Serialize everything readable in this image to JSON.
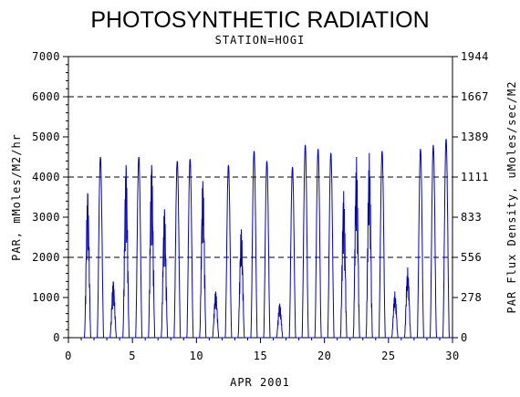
{
  "chart_data": {
    "type": "line",
    "title": "PHOTOSYNTHETIC RADIATION",
    "subtitle": "STATION=HOGI",
    "xlabel": "APR 2001",
    "ylabel": "PAR, mMoles/M2/hr",
    "y2label": "PAR Flux Density, uMoles/sec/M2",
    "xlim": [
      0,
      30
    ],
    "ylim": [
      0,
      7000
    ],
    "xticks": [
      0,
      5,
      10,
      15,
      20,
      25,
      30
    ],
    "xtick_labels": [
      "0",
      "5",
      "10",
      "15",
      "20",
      "25",
      "30"
    ],
    "yticks": [
      0,
      1000,
      2000,
      3000,
      4000,
      5000,
      6000,
      7000
    ],
    "ytick_labels": [
      "0",
      "1000",
      "2000",
      "3000",
      "4000",
      "5000",
      "6000",
      "7000"
    ],
    "y2ticks": [
      0,
      278,
      556,
      833,
      1111,
      1389,
      1667,
      1944
    ],
    "y2tick_labels": [
      "0",
      "278",
      "556",
      "833",
      "1111",
      "1389",
      "1667",
      "1944"
    ],
    "hlines": [
      2000,
      4000,
      6000
    ],
    "grid": false,
    "color": "#0000cc",
    "series": [
      {
        "daily": [
          {
            "day": 1,
            "peak": 3600,
            "shape": "spiky"
          },
          {
            "day": 2,
            "peak": 4500,
            "shape": "smooth"
          },
          {
            "day": 3,
            "peak": 1400,
            "shape": "spiky"
          },
          {
            "day": 4,
            "peak": 4300,
            "shape": "spiky"
          },
          {
            "day": 5,
            "peak": 4500,
            "shape": "smooth"
          },
          {
            "day": 6,
            "peak": 4300,
            "shape": "spiky"
          },
          {
            "day": 7,
            "peak": 3200,
            "shape": "spiky"
          },
          {
            "day": 8,
            "peak": 4400,
            "shape": "smooth"
          },
          {
            "day": 9,
            "peak": 4450,
            "shape": "smooth"
          },
          {
            "day": 10,
            "peak": 3900,
            "shape": "spiky"
          },
          {
            "day": 11,
            "peak": 1150,
            "shape": "spiky"
          },
          {
            "day": 12,
            "peak": 4300,
            "shape": "smooth"
          },
          {
            "day": 13,
            "peak": 2700,
            "shape": "spiky"
          },
          {
            "day": 14,
            "peak": 4650,
            "shape": "smooth"
          },
          {
            "day": 15,
            "peak": 4400,
            "shape": "smooth"
          },
          {
            "day": 16,
            "peak": 850,
            "shape": "spiky"
          },
          {
            "day": 17,
            "peak": 4250,
            "shape": "smooth"
          },
          {
            "day": 18,
            "peak": 4800,
            "shape": "smooth"
          },
          {
            "day": 19,
            "peak": 4700,
            "shape": "smooth"
          },
          {
            "day": 20,
            "peak": 4600,
            "shape": "smooth"
          },
          {
            "day": 21,
            "peak": 3650,
            "shape": "spiky"
          },
          {
            "day": 22,
            "peak": 4500,
            "shape": "spiky"
          },
          {
            "day": 23,
            "peak": 4600,
            "shape": "spiky"
          },
          {
            "day": 24,
            "peak": 4650,
            "shape": "smooth"
          },
          {
            "day": 25,
            "peak": 1150,
            "shape": "spiky"
          },
          {
            "day": 26,
            "peak": 1750,
            "shape": "spiky"
          },
          {
            "day": 27,
            "peak": 4700,
            "shape": "smooth"
          },
          {
            "day": 28,
            "peak": 4800,
            "shape": "smooth"
          },
          {
            "day": 29,
            "peak": 4950,
            "shape": "smooth"
          }
        ]
      }
    ]
  }
}
